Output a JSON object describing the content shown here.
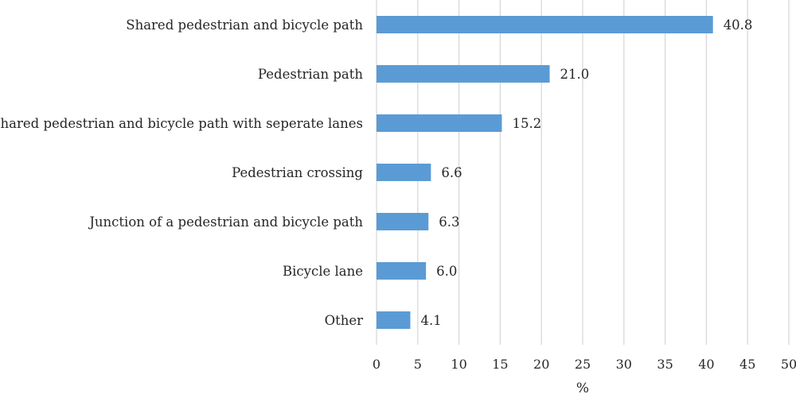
{
  "chart_data": {
    "type": "bar",
    "orientation": "horizontal",
    "categories": [
      "Shared pedestrian and bicycle path",
      "Pedestrian path",
      "Shared pedestrian and bicycle path with seperate lanes",
      "Pedestrian crossing",
      "Junction of a pedestrian and bicycle path",
      "Bicycle lane",
      "Other"
    ],
    "values": [
      40.8,
      21.0,
      15.2,
      6.6,
      6.3,
      6.0,
      4.1
    ],
    "value_labels": [
      "40.8",
      "21.0",
      "15.2",
      "6.6",
      "6.3",
      "6.0",
      "4.1"
    ],
    "xlabel": "%",
    "xlim": [
      0,
      50
    ],
    "xticks": [
      0,
      5,
      10,
      15,
      20,
      25,
      30,
      35,
      40,
      45,
      50
    ],
    "grid": "vertical",
    "legend": "none",
    "bar_color": "#5b9bd5"
  }
}
